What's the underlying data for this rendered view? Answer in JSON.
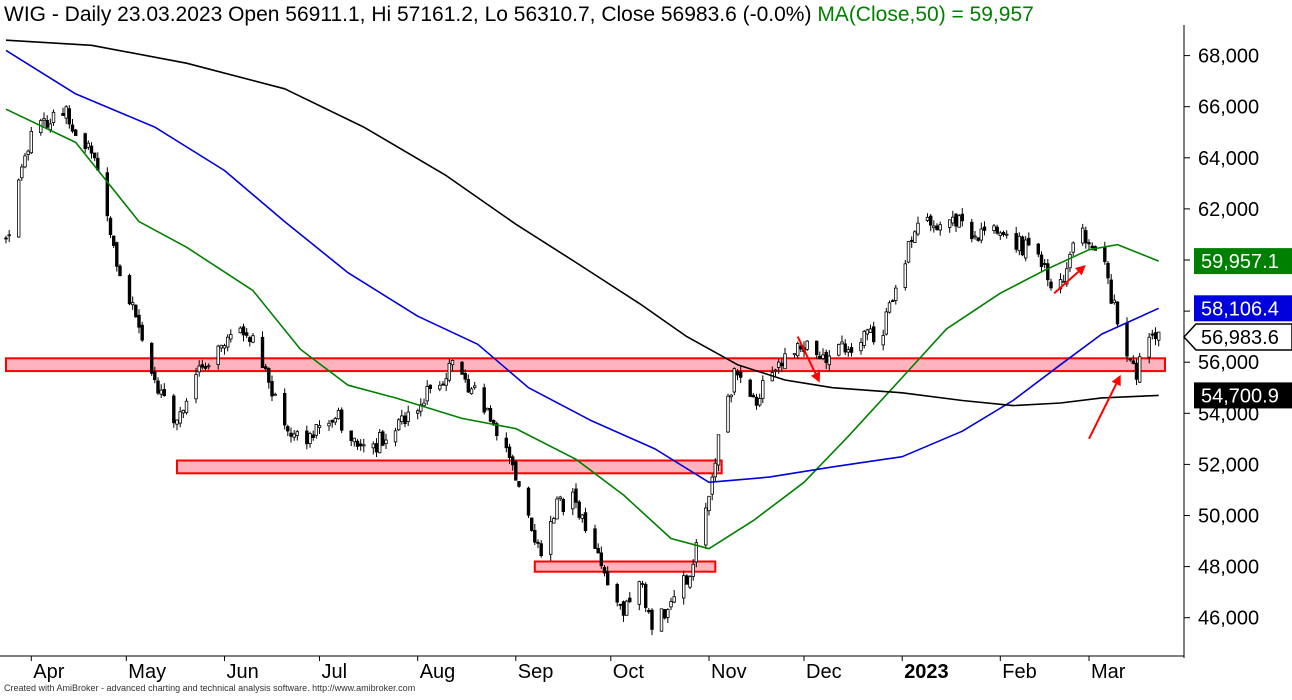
{
  "header": {
    "main": "WIG - Daily 23.03.2023 Open 56911.1, Hi 57161.2, Lo 56310.7, Close 56983.6 (-0.0%)",
    "ma_label": "MA(Close,50) = 59,957"
  },
  "footer": "Created with AmiBroker - advanced charting and technical analysis software. http://www.amibroker.com",
  "chart_data": {
    "type": "line",
    "ylim": [
      44500,
      69000
    ],
    "ytick_values": [
      46000,
      48000,
      50000,
      52000,
      54000,
      56000,
      58000,
      60000,
      62000,
      64000,
      66000,
      68000
    ],
    "ytick_labels": [
      "46,000",
      "48,000",
      "50,000",
      "52,000",
      "54,000",
      "56,000",
      "",
      "",
      "62,000",
      "64,000",
      "66,000",
      "68,000"
    ],
    "x_range": [
      "2022-03-24",
      "2023-03-31"
    ],
    "x_tick_labels": [
      {
        "date": "2022-04-01",
        "label": "Apr",
        "bold": false
      },
      {
        "date": "2022-05-01",
        "label": "May",
        "bold": false
      },
      {
        "date": "2022-06-01",
        "label": "Jun",
        "bold": false
      },
      {
        "date": "2022-07-01",
        "label": "Jul",
        "bold": false
      },
      {
        "date": "2022-08-01",
        "label": "Aug",
        "bold": false
      },
      {
        "date": "2022-09-01",
        "label": "Sep",
        "bold": false
      },
      {
        "date": "2022-10-01",
        "label": "Oct",
        "bold": false
      },
      {
        "date": "2022-11-01",
        "label": "Nov",
        "bold": false
      },
      {
        "date": "2022-12-01",
        "label": "Dec",
        "bold": false
      },
      {
        "date": "2023-01-01",
        "label": "2023",
        "bold": true
      },
      {
        "date": "2023-02-01",
        "label": "Feb",
        "bold": false
      },
      {
        "date": "2023-03-01",
        "label": "Mar",
        "bold": false
      }
    ],
    "price_path": [
      {
        "date": "2022-03-24",
        "value": 60800
      },
      {
        "date": "2022-04-01",
        "value": 64800
      },
      {
        "date": "2022-04-10",
        "value": 66000
      },
      {
        "date": "2022-04-15",
        "value": 65200
      },
      {
        "date": "2022-04-22",
        "value": 63800
      },
      {
        "date": "2022-04-28",
        "value": 60000
      },
      {
        "date": "2022-05-05",
        "value": 57500
      },
      {
        "date": "2022-05-10",
        "value": 55300
      },
      {
        "date": "2022-05-16",
        "value": 53500
      },
      {
        "date": "2022-05-22",
        "value": 55300
      },
      {
        "date": "2022-05-30",
        "value": 56400
      },
      {
        "date": "2022-06-06",
        "value": 57400
      },
      {
        "date": "2022-06-12",
        "value": 56400
      },
      {
        "date": "2022-06-18",
        "value": 54300
      },
      {
        "date": "2022-06-24",
        "value": 53000
      },
      {
        "date": "2022-06-30",
        "value": 53300
      },
      {
        "date": "2022-07-06",
        "value": 54000
      },
      {
        "date": "2022-07-12",
        "value": 53000
      },
      {
        "date": "2022-07-18",
        "value": 52700
      },
      {
        "date": "2022-07-24",
        "value": 53300
      },
      {
        "date": "2022-07-30",
        "value": 54200
      },
      {
        "date": "2022-08-05",
        "value": 54900
      },
      {
        "date": "2022-08-12",
        "value": 55800
      },
      {
        "date": "2022-08-18",
        "value": 55000
      },
      {
        "date": "2022-08-24",
        "value": 53900
      },
      {
        "date": "2022-08-30",
        "value": 52400
      },
      {
        "date": "2022-09-04",
        "value": 50300
      },
      {
        "date": "2022-09-09",
        "value": 48600
      },
      {
        "date": "2022-09-14",
        "value": 50400
      },
      {
        "date": "2022-09-19",
        "value": 50600
      },
      {
        "date": "2022-09-24",
        "value": 49500
      },
      {
        "date": "2022-09-30",
        "value": 47500
      },
      {
        "date": "2022-10-05",
        "value": 46200
      },
      {
        "date": "2022-10-10",
        "value": 47600
      },
      {
        "date": "2022-10-14",
        "value": 45700
      },
      {
        "date": "2022-10-20",
        "value": 46500
      },
      {
        "date": "2022-10-26",
        "value": 47800
      },
      {
        "date": "2022-10-31",
        "value": 50200
      },
      {
        "date": "2022-11-05",
        "value": 53800
      },
      {
        "date": "2022-11-10",
        "value": 55800
      },
      {
        "date": "2022-11-16",
        "value": 54500
      },
      {
        "date": "2022-11-22",
        "value": 55800
      },
      {
        "date": "2022-11-28",
        "value": 56300
      },
      {
        "date": "2022-12-03",
        "value": 56900
      },
      {
        "date": "2022-12-08",
        "value": 55900
      },
      {
        "date": "2022-12-14",
        "value": 56600
      },
      {
        "date": "2022-12-20",
        "value": 56900
      },
      {
        "date": "2022-12-26",
        "value": 57200
      },
      {
        "date": "2023-01-01",
        "value": 59800
      },
      {
        "date": "2023-01-06",
        "value": 61700
      },
      {
        "date": "2023-01-12",
        "value": 61200
      },
      {
        "date": "2023-01-18",
        "value": 61500
      },
      {
        "date": "2023-01-24",
        "value": 61000
      },
      {
        "date": "2023-01-30",
        "value": 61300
      },
      {
        "date": "2023-02-05",
        "value": 60700
      },
      {
        "date": "2023-02-10",
        "value": 60400
      },
      {
        "date": "2023-02-15",
        "value": 59700
      },
      {
        "date": "2023-02-19",
        "value": 58800
      },
      {
        "date": "2023-02-23",
        "value": 60100
      },
      {
        "date": "2023-02-27",
        "value": 61000
      },
      {
        "date": "2023-03-02",
        "value": 60800
      },
      {
        "date": "2023-03-06",
        "value": 59700
      },
      {
        "date": "2023-03-09",
        "value": 58100
      },
      {
        "date": "2023-03-13",
        "value": 56500
      },
      {
        "date": "2023-03-16",
        "value": 55600
      },
      {
        "date": "2023-03-20",
        "value": 56900
      },
      {
        "date": "2023-03-23",
        "value": 56983.6
      }
    ],
    "series": [
      {
        "color": "#008000",
        "values": [
          {
            "date": "2022-03-24",
            "value": 65900
          },
          {
            "date": "2022-04-15",
            "value": 64600
          },
          {
            "date": "2022-05-05",
            "value": 61500
          },
          {
            "date": "2022-05-20",
            "value": 60500
          },
          {
            "date": "2022-06-10",
            "value": 58800
          },
          {
            "date": "2022-06-25",
            "value": 56500
          },
          {
            "date": "2022-07-10",
            "value": 55100
          },
          {
            "date": "2022-07-25",
            "value": 54600
          },
          {
            "date": "2022-08-15",
            "value": 53800
          },
          {
            "date": "2022-09-01",
            "value": 53400
          },
          {
            "date": "2022-09-20",
            "value": 52200
          },
          {
            "date": "2022-10-05",
            "value": 50800
          },
          {
            "date": "2022-10-20",
            "value": 49100
          },
          {
            "date": "2022-11-01",
            "value": 48700
          },
          {
            "date": "2022-11-15",
            "value": 49800
          },
          {
            "date": "2022-12-01",
            "value": 51300
          },
          {
            "date": "2022-12-15",
            "value": 53100
          },
          {
            "date": "2023-01-01",
            "value": 55400
          },
          {
            "date": "2023-01-15",
            "value": 57300
          },
          {
            "date": "2023-02-01",
            "value": 58700
          },
          {
            "date": "2023-02-15",
            "value": 59600
          },
          {
            "date": "2023-03-01",
            "value": 60400
          },
          {
            "date": "2023-03-10",
            "value": 60600
          },
          {
            "date": "2023-03-23",
            "value": 59957.1
          }
        ]
      },
      {
        "color": "#0000dd",
        "values": [
          {
            "date": "2022-03-24",
            "value": 68200
          },
          {
            "date": "2022-04-15",
            "value": 66500
          },
          {
            "date": "2022-05-10",
            "value": 65200
          },
          {
            "date": "2022-06-01",
            "value": 63500
          },
          {
            "date": "2022-06-20",
            "value": 61500
          },
          {
            "date": "2022-07-10",
            "value": 59500
          },
          {
            "date": "2022-08-01",
            "value": 57800
          },
          {
            "date": "2022-08-20",
            "value": 56700
          },
          {
            "date": "2022-09-05",
            "value": 55000
          },
          {
            "date": "2022-09-25",
            "value": 53700
          },
          {
            "date": "2022-10-15",
            "value": 52600
          },
          {
            "date": "2022-11-01",
            "value": 51300
          },
          {
            "date": "2022-11-20",
            "value": 51500
          },
          {
            "date": "2022-12-10",
            "value": 51900
          },
          {
            "date": "2023-01-01",
            "value": 52300
          },
          {
            "date": "2023-01-20",
            "value": 53300
          },
          {
            "date": "2023-02-05",
            "value": 54500
          },
          {
            "date": "2023-02-20",
            "value": 55900
          },
          {
            "date": "2023-03-05",
            "value": 57100
          },
          {
            "date": "2023-03-23",
            "value": 58106.4
          }
        ]
      },
      {
        "color": "#000000",
        "values": [
          {
            "date": "2022-03-24",
            "value": 68600
          },
          {
            "date": "2022-04-20",
            "value": 68400
          },
          {
            "date": "2022-05-20",
            "value": 67700
          },
          {
            "date": "2022-06-20",
            "value": 66700
          },
          {
            "date": "2022-07-15",
            "value": 65200
          },
          {
            "date": "2022-08-10",
            "value": 63300
          },
          {
            "date": "2022-09-01",
            "value": 61400
          },
          {
            "date": "2022-09-20",
            "value": 59900
          },
          {
            "date": "2022-10-10",
            "value": 58300
          },
          {
            "date": "2022-10-25",
            "value": 57000
          },
          {
            "date": "2022-11-10",
            "value": 55900
          },
          {
            "date": "2022-11-25",
            "value": 55300
          },
          {
            "date": "2022-12-10",
            "value": 55000
          },
          {
            "date": "2023-01-01",
            "value": 54800
          },
          {
            "date": "2023-01-20",
            "value": 54500
          },
          {
            "date": "2023-02-05",
            "value": 54300
          },
          {
            "date": "2023-02-20",
            "value": 54400
          },
          {
            "date": "2023-03-05",
            "value": 54600
          },
          {
            "date": "2023-03-23",
            "value": 54700.9
          }
        ]
      }
    ],
    "value_markers": [
      {
        "value": 59957.1,
        "label": "59,957.1",
        "bg": "#008000",
        "fg": "#ffffff"
      },
      {
        "value": 58106.4,
        "label": "58,106.4",
        "bg": "#0000dd",
        "fg": "#ffffff"
      },
      {
        "value": 56983.6,
        "label": "56,983.6",
        "bg": "#ffffff",
        "fg": "#000000",
        "pointer": true
      },
      {
        "value": 54700.9,
        "label": "54,700.9",
        "bg": "#000000",
        "fg": "#ffffff"
      }
    ],
    "zones": [
      {
        "x0": "2022-03-24",
        "x1": "2023-03-25",
        "y0": 55650,
        "y1": 56150
      },
      {
        "x0": "2022-05-17",
        "x1": "2022-11-05",
        "y0": 51650,
        "y1": 52150
      },
      {
        "x0": "2022-09-07",
        "x1": "2022-11-03",
        "y0": 47800,
        "y1": 48200
      }
    ],
    "arrows": [
      {
        "from": {
          "date": "2022-11-29",
          "value": 57000
        },
        "to": {
          "date": "2022-12-06",
          "value": 55200
        }
      },
      {
        "from": {
          "date": "2023-02-18",
          "value": 58700
        },
        "to": {
          "date": "2023-02-28",
          "value": 59800
        }
      },
      {
        "from": {
          "date": "2023-03-01",
          "value": 53000
        },
        "to": {
          "date": "2023-03-11",
          "value": 55500
        }
      }
    ],
    "grid": false,
    "legend": "none",
    "colors": {
      "candle_up": "#ffffff",
      "candle_down": "#000000",
      "zone_fill": "#ffb3bd",
      "zone_stroke": "#ff0000",
      "arrow": "#ff0000"
    }
  }
}
